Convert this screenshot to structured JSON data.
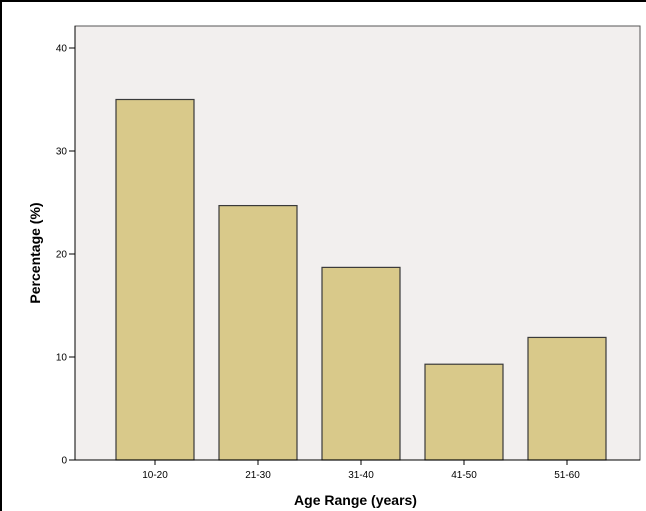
{
  "chart_data": {
    "type": "bar",
    "categories": [
      "10-20",
      "21-30",
      "31-40",
      "41-50",
      "51-60"
    ],
    "values": [
      35,
      24.7,
      18.7,
      9.3,
      11.9
    ],
    "title": "",
    "xlabel": "Age Range (years)",
    "ylabel": "Percentage (%)",
    "ylim": [
      0,
      40
    ],
    "yticks": [
      0,
      10,
      20,
      30,
      40
    ],
    "grid": false,
    "legend": "none",
    "colors": {
      "bar_fill": "#d9c98a",
      "bar_stroke": "#3a3a3a",
      "plot_background": "#f2efee",
      "axis": "#000000"
    }
  }
}
